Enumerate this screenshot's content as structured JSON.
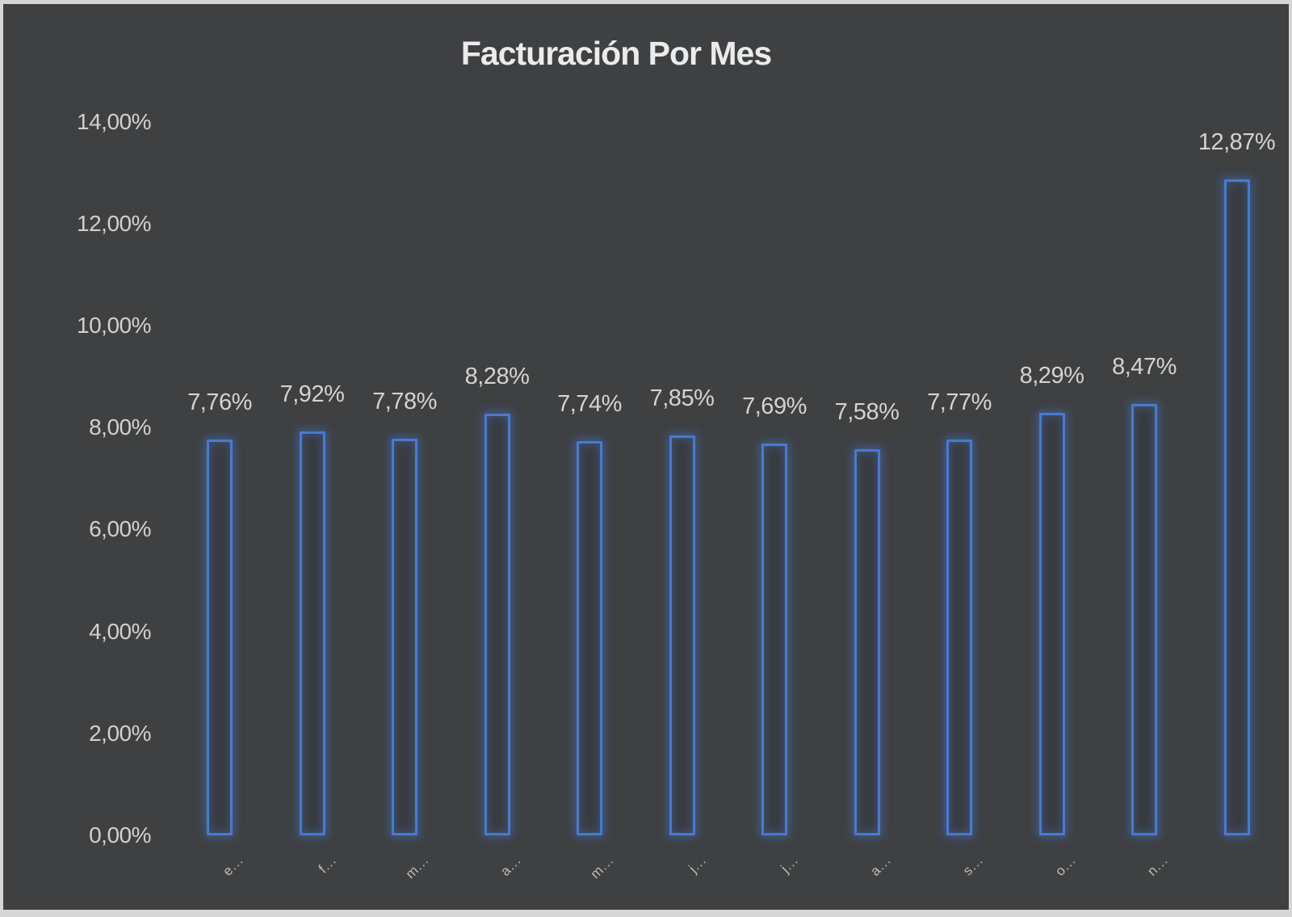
{
  "window": {
    "frame_color": "#d6d6d6"
  },
  "chart_data": {
    "type": "bar",
    "title": "Facturación Por Mes",
    "categories": [
      "e...",
      "f...",
      "m...",
      "a...",
      "m...",
      "j...",
      "j...",
      "a...",
      "s...",
      "o...",
      "n...",
      ""
    ],
    "values": [
      7.76,
      7.92,
      7.78,
      8.28,
      7.74,
      7.85,
      7.69,
      7.58,
      7.77,
      8.29,
      8.47,
      12.87
    ],
    "data_labels": [
      "7,76%",
      "7,92%",
      "7,78%",
      "8,28%",
      "7,74%",
      "7,85%",
      "7,69%",
      "7,58%",
      "7,77%",
      "8,29%",
      "8,47%",
      "12,87%"
    ],
    "y_ticks": [
      "0,00%",
      "2,00%",
      "4,00%",
      "6,00%",
      "8,00%",
      "10,00%",
      "12,00%",
      "14,00%"
    ],
    "ylim": [
      0,
      14
    ],
    "xlabel": "",
    "ylabel": "",
    "grid": false,
    "legend": false,
    "colors": {
      "plot_background": "#3f4042",
      "bar_outline": "#4a7ace",
      "bar_fill": "#393c41",
      "title_text": "#ebebeb",
      "axis_text": "#d3d0ca",
      "value_label_text": "#d6d3cd",
      "category_text": "#bdbbb7"
    }
  }
}
